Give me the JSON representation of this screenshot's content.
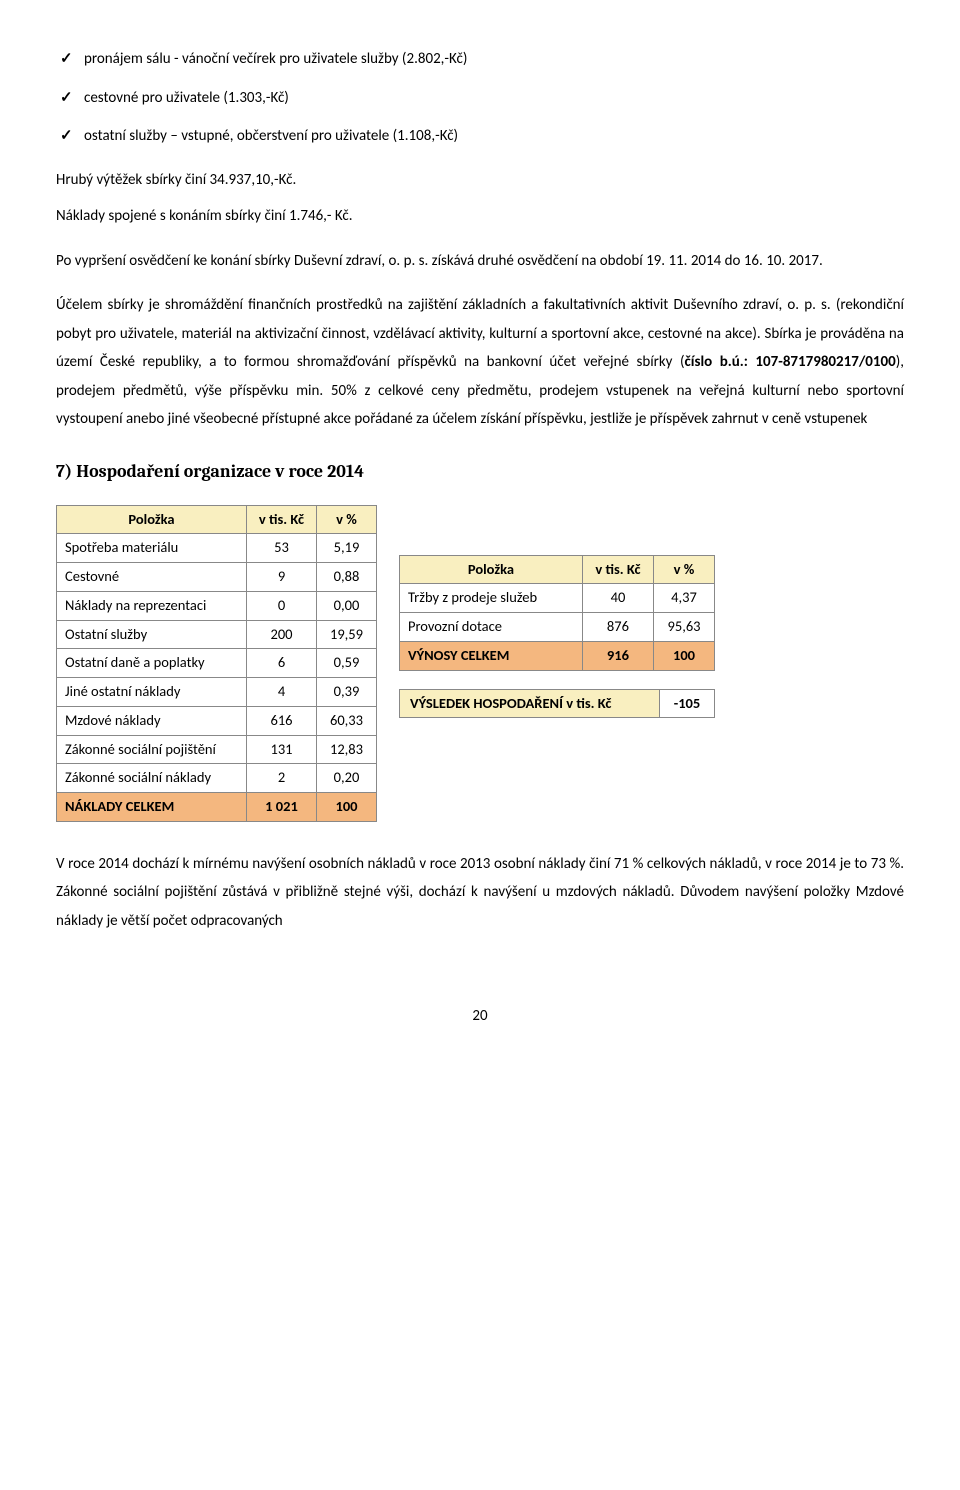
{
  "colors": {
    "header_bg": "#f9efc0",
    "total_bg": "#f4b77f",
    "cell_bg": "#ffffff",
    "border": "#888888"
  },
  "bullets": [
    "pronájem sálu - vánoční večírek pro uživatele služby (2.802,-Kč)",
    "cestovné pro uživatele (1.303,-Kč)",
    "ostatní služby – vstupné, občerstvení pro uživatele (1.108,-Kč)"
  ],
  "lines": {
    "l1": "Hrubý výtěžek sbírky činí 34.937,10,-Kč.",
    "l2": "Náklady spojené s konáním sbírky činí 1.746,- Kč.",
    "l3": "Po vypršení osvědčení ke konání sbírky Duševní zdraví, o. p. s. získává druhé osvědčení na období 19. 11. 2014 do 16. 10. 2017."
  },
  "para_main_1": "Účelem sbírky je shromáždění finančních prostředků na zajištění základních a fakultativních aktivit Duševního zdraví, o. p. s. (rekondiční pobyt pro uživatele, materiál na aktivizační činnost, vzdělávací aktivity, kulturní a sportovní akce, cestovné na akce). Sbírka je prováděna na území České republiky, a to formou shromažďování příspěvků na bankovní účet veřejné sbírky (",
  "para_main_bold": "číslo b.ú.: 107-8717980217/0100",
  "para_main_2": "), prodejem předmětů, výše příspěvku min. 50% z celkové ceny předmětu, prodejem vstupenek na veřejná kulturní nebo sportovní vystoupení anebo jiné všeobecné přístupné akce pořádané za účelem získání příspěvku, jestliže je příspěvek zahrnut v ceně vstupenek",
  "section_title": "7) Hospodaření organizace v roce 2014",
  "left_table": {
    "headers": [
      "Položka",
      "v tis. Kč",
      "v %"
    ],
    "rows": [
      [
        "Spotřeba materiálu",
        "53",
        "5,19"
      ],
      [
        "Cestovné",
        "9",
        "0,88"
      ],
      [
        "Náklady na reprezentaci",
        "0",
        "0,00"
      ],
      [
        "Ostatní služby",
        "200",
        "19,59"
      ],
      [
        "Ostatní daně a poplatky",
        "6",
        "0,59"
      ],
      [
        "Jiné ostatní náklady",
        "4",
        "0,39"
      ],
      [
        "Mzdové náklady",
        "616",
        "60,33"
      ],
      [
        "Zákonné sociální pojištění",
        "131",
        "12,83"
      ],
      [
        "Zákonné sociální náklady",
        "2",
        "0,20"
      ]
    ],
    "total": [
      "NÁKLADY CELKEM",
      "1 021",
      "100"
    ]
  },
  "right_table": {
    "headers": [
      "Položka",
      "v tis. Kč",
      "v %"
    ],
    "rows": [
      [
        "Tržby z prodeje služeb",
        "40",
        "4,37"
      ],
      [
        "Provozní dotace",
        "876",
        "95,63"
      ]
    ],
    "total": [
      "VÝNOSY CELKEM",
      "916",
      "100"
    ]
  },
  "result": {
    "label": "VÝSLEDEK HOSPODAŘENÍ v tis. Kč",
    "value": "-105"
  },
  "bottom_para": "V roce 2014 dochází k  mírnému navýšení osobních nákladů  v roce 2013 osobní náklady činí 71 % celkových nákladů, v roce 2014 je to 73 %. Zákonné sociální pojištění zůstává v přibližně stejné výši, dochází k navýšení u mzdových nákladů. Důvodem navýšení položky Mzdové náklady je větší počet odpracovaných",
  "page_number": "20"
}
